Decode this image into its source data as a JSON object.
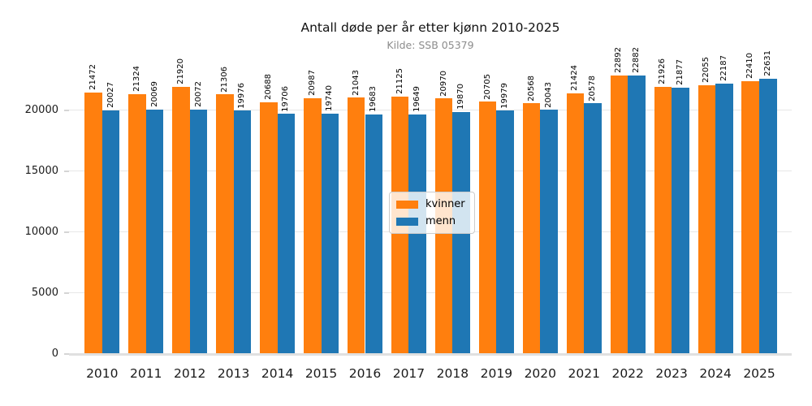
{
  "chart_data": {
    "type": "bar",
    "title": "Antall døde per år etter kjønn 2010-2025",
    "subtitle": "Kilde: SSB 05379",
    "xlabel": "",
    "ylabel": "",
    "categories": [
      "2010",
      "2011",
      "2012",
      "2013",
      "2014",
      "2015",
      "2016",
      "2017",
      "2018",
      "2019",
      "2020",
      "2021",
      "2022",
      "2023",
      "2024",
      "2025"
    ],
    "series": [
      {
        "name": "kvinner",
        "color": "#ff7f0e",
        "values": [
          21472,
          21324,
          21920,
          21306,
          20688,
          20987,
          21043,
          21125,
          20970,
          20705,
          20568,
          21424,
          22892,
          21926,
          22055,
          22410
        ]
      },
      {
        "name": "menn",
        "color": "#1f77b4",
        "values": [
          20027,
          20069,
          20072,
          19976,
          19706,
          19740,
          19683,
          19649,
          19870,
          19979,
          20043,
          20578,
          22882,
          21877,
          22187,
          22631
        ]
      }
    ],
    "yticks": [
      0,
      5000,
      10000,
      15000,
      20000
    ],
    "ylim": [
      0,
      26667
    ],
    "grid": true,
    "bar_value_labels": true,
    "legend_position": "center",
    "colors": {
      "grid": "#e7e7e7",
      "axis_line": "#e0e0e0",
      "title": "#111111",
      "subtitle": "#8c8c8c",
      "tick_label": "#1a1a1a",
      "bar_label": "#000000",
      "background": "#ffffff"
    }
  }
}
